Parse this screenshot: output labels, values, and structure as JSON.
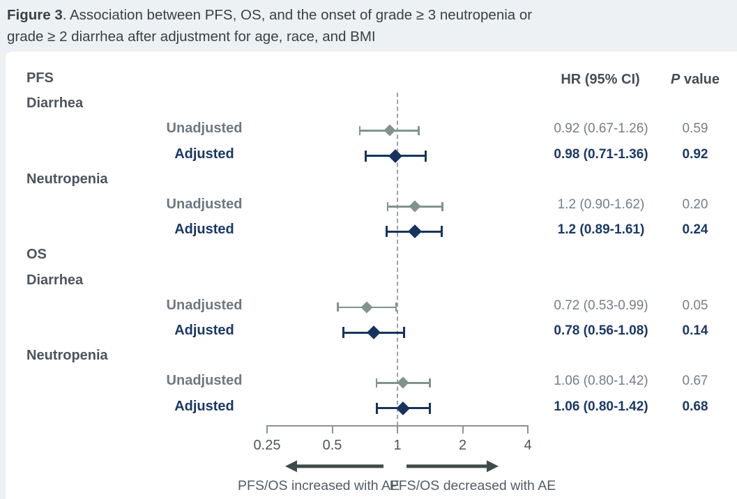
{
  "title": {
    "bold": "Figure 3",
    "line1_rest": ". Association between PFS, OS, and the onset of grade ≥ 3 neutropenia or",
    "line2": "grade ≥ 2 diarrhea after adjustment for age, race, and BMI"
  },
  "headers": {
    "hr": "HR (95% CI)",
    "p_italic": "P",
    "p_rest": " value"
  },
  "chart_data": {
    "type": "forest",
    "x_scale": "log",
    "x_ticks": [
      "0.25",
      "0.5",
      "1",
      "2",
      "4"
    ],
    "x_tick_values": [
      0.25,
      0.5,
      1,
      2,
      4
    ],
    "x_range": [
      0.25,
      4
    ],
    "reference_line": 1,
    "rows": [
      {
        "kind": "section",
        "label": "PFS"
      },
      {
        "kind": "subgroup",
        "label": "Diarrhea"
      },
      {
        "kind": "estimate",
        "style": "unadjusted",
        "label": "Unadjusted",
        "hr": 0.92,
        "ci_low": 0.67,
        "ci_high": 1.26,
        "hr_text": "0.92 (0.67-1.26)",
        "p_text": "0.59"
      },
      {
        "kind": "estimate",
        "style": "adjusted",
        "label": "Adjusted",
        "hr": 0.98,
        "ci_low": 0.71,
        "ci_high": 1.36,
        "hr_text": "0.98 (0.71-1.36)",
        "p_text": "0.92"
      },
      {
        "kind": "subgroup",
        "label": "Neutropenia"
      },
      {
        "kind": "estimate",
        "style": "unadjusted",
        "label": "Unadjusted",
        "hr": 1.2,
        "ci_low": 0.9,
        "ci_high": 1.62,
        "hr_text": "1.2 (0.90-1.62)",
        "p_text": "0.20"
      },
      {
        "kind": "estimate",
        "style": "adjusted",
        "label": "Adjusted",
        "hr": 1.2,
        "ci_low": 0.89,
        "ci_high": 1.61,
        "hr_text": "1.2 (0.89-1.61)",
        "p_text": "0.24"
      },
      {
        "kind": "section",
        "label": "OS"
      },
      {
        "kind": "subgroup",
        "label": "Diarrhea"
      },
      {
        "kind": "estimate",
        "style": "unadjusted",
        "label": "Unadjusted",
        "hr": 0.72,
        "ci_low": 0.53,
        "ci_high": 0.99,
        "hr_text": "0.72 (0.53-0.99)",
        "p_text": "0.05"
      },
      {
        "kind": "estimate",
        "style": "adjusted",
        "label": "Adjusted",
        "hr": 0.78,
        "ci_low": 0.56,
        "ci_high": 1.08,
        "hr_text": "0.78 (0.56-1.08)",
        "p_text": "0.14"
      },
      {
        "kind": "subgroup",
        "label": "Neutropenia"
      },
      {
        "kind": "estimate",
        "style": "unadjusted",
        "label": "Unadjusted",
        "hr": 1.06,
        "ci_low": 0.8,
        "ci_high": 1.42,
        "hr_text": "1.06 (0.80-1.42)",
        "p_text": "0.67"
      },
      {
        "kind": "estimate",
        "style": "adjusted",
        "label": "Adjusted",
        "hr": 1.06,
        "ci_low": 0.8,
        "ci_high": 1.42,
        "hr_text": "1.06 (0.80-1.42)",
        "p_text": "0.68"
      }
    ],
    "footer_arrows": {
      "left": "PFS/OS increased with AE",
      "right": "PFS/OS decreased with AE"
    }
  },
  "colors": {
    "page_bg": "#edf1f4",
    "card_bg": "#ffffff",
    "title_text": "#3b4045",
    "header_text": "#454d55",
    "section_text": "#4c545d",
    "unadjusted_marker": "#80948c",
    "unadjusted_label": "#6d7881",
    "unadjusted_value": "#747e87",
    "adjusted": "#1b3866",
    "adjusted_marker": "#16335d",
    "dashed_line": "#9ba2a8",
    "axis": "#8b9299",
    "tick_text": "#4f565c",
    "arrow": "#3f4b4b",
    "arrow_text": "#525c64"
  }
}
